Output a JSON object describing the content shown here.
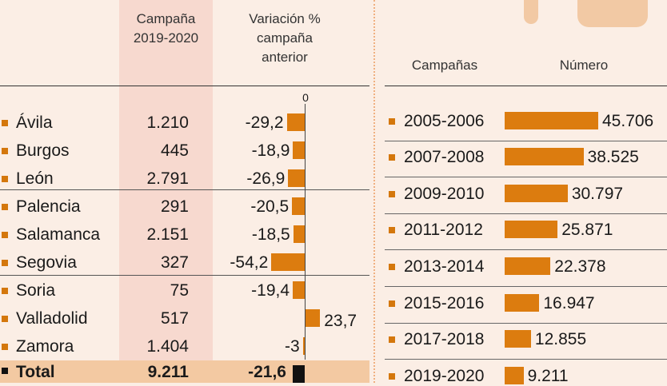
{
  "left_table": {
    "header_campaign": [
      "Campaña",
      "2019-2020"
    ],
    "header_variation": [
      "Variación %",
      "campaña",
      "anterior"
    ],
    "zero_label": "0",
    "total": {
      "name": "Total",
      "value": "9.211",
      "variation": "-21,6"
    }
  },
  "right_table": {
    "header_campaigns": "Campañas",
    "header_number": "Número"
  },
  "colors": {
    "bar": "#dc7c0f",
    "marker": "#d4770c",
    "total_bar": "#111111",
    "highlight_column": "#f7d9cf",
    "total_band": "#f3c9a2"
  },
  "chart_data": [
    {
      "type": "bar",
      "categories": [
        "Ávila",
        "Burgos",
        "León",
        "Palencia",
        "Salamanca",
        "Segovia",
        "Soria",
        "Valladolid",
        "Zamora"
      ],
      "campaign_2019_2020": [
        "1.210",
        "445",
        "2.791",
        "291",
        "2.151",
        "327",
        "75",
        "517",
        "1.404"
      ],
      "values": [
        -29.2,
        -18.9,
        -26.9,
        -20.5,
        -18.5,
        -54.2,
        -19.4,
        23.7,
        -3
      ],
      "value_labels": [
        "-29,2",
        "-18,9",
        "-26,9",
        "-20,5",
        "-18,5",
        "-54,2",
        "-19,4",
        "23,7",
        "-3"
      ]
    },
    {
      "type": "bar",
      "categories": [
        "2005-2006",
        "2007-2008",
        "2009-2010",
        "2011-2012",
        "2013-2014",
        "2015-2016",
        "2017-2018",
        "2019-2020"
      ],
      "values": [
        45706,
        38525,
        30797,
        25871,
        22378,
        16947,
        12855,
        9211
      ],
      "value_labels": [
        "45.706",
        "38.525",
        "30.797",
        "25.871",
        "22.378",
        "16.947",
        "12.855",
        "9.211"
      ]
    }
  ]
}
